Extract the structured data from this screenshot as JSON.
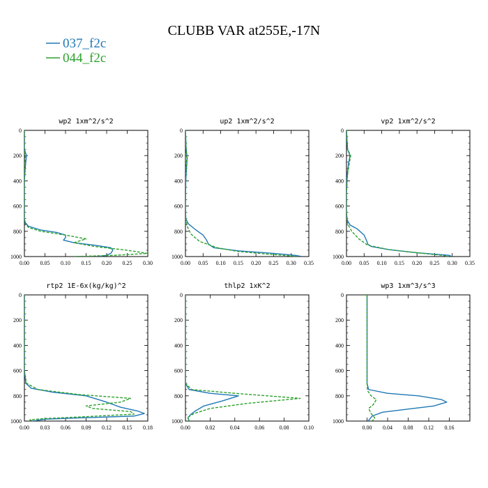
{
  "figure": {
    "title": "CLUBB VAR at255E,-17N",
    "legend": [
      {
        "label": "037_f2c",
        "color": "#1f77b4"
      },
      {
        "label": "044_f2c",
        "color": "#2ca02c"
      }
    ]
  },
  "chart_data": [
    {
      "type": "line",
      "title": "wp2  1xm^2/s^2",
      "xlim": [
        0,
        0.3
      ],
      "ylim": [
        1000,
        0
      ],
      "xticks": [
        0,
        0.05,
        0.1,
        0.15,
        0.2,
        0.25,
        0.3
      ],
      "xtick_labels": [
        "0.00",
        "0.05",
        "0.10",
        "0.15",
        "0.20",
        "0.25",
        "0.30"
      ],
      "yticks": [
        0,
        200,
        400,
        600,
        800,
        1000
      ],
      "ytick_labels": [
        "0",
        "200",
        "400",
        "600",
        "800",
        "1000"
      ],
      "series": [
        {
          "name": "037_f2c",
          "color": "#1f77b4",
          "dashed": false,
          "points": [
            [
              0.0,
              0
            ],
            [
              0.0,
              150
            ],
            [
              0.003,
              180
            ],
            [
              0.005,
              200
            ],
            [
              0.004,
              230
            ],
            [
              0.002,
              300
            ],
            [
              0.0,
              400
            ],
            [
              0.0,
              600
            ],
            [
              0.0,
              700
            ],
            [
              0.002,
              730
            ],
            [
              0.01,
              760
            ],
            [
              0.04,
              790
            ],
            [
              0.08,
              810
            ],
            [
              0.1,
              830
            ],
            [
              0.1,
              850
            ],
            [
              0.095,
              870
            ],
            [
              0.12,
              890
            ],
            [
              0.17,
              910
            ],
            [
              0.21,
              930
            ],
            [
              0.215,
              950
            ],
            [
              0.21,
              975
            ],
            [
              0.2,
              990
            ],
            [
              0.18,
              1000
            ]
          ]
        },
        {
          "name": "044_f2c",
          "color": "#2ca02c",
          "dashed": true,
          "points": [
            [
              0.0,
              0
            ],
            [
              0.0,
              150
            ],
            [
              0.002,
              200
            ],
            [
              0.001,
              300
            ],
            [
              0.0,
              400
            ],
            [
              0.0,
              700
            ],
            [
              0.002,
              740
            ],
            [
              0.01,
              770
            ],
            [
              0.04,
              800
            ],
            [
              0.1,
              830
            ],
            [
              0.15,
              860
            ],
            [
              0.12,
              890
            ],
            [
              0.17,
              920
            ],
            [
              0.25,
              950
            ],
            [
              0.3,
              975
            ],
            [
              0.22,
              990
            ],
            [
              0.12,
              1000
            ]
          ]
        }
      ]
    },
    {
      "type": "line",
      "title": "up2  1xm^2/s^2",
      "xlim": [
        0,
        0.35
      ],
      "ylim": [
        1000,
        0
      ],
      "xticks": [
        0,
        0.05,
        0.1,
        0.15,
        0.2,
        0.25,
        0.3,
        0.35
      ],
      "xtick_labels": [
        "0.00",
        "0.05",
        "0.10",
        "0.15",
        "0.20",
        "0.25",
        "0.30",
        "0.35"
      ],
      "yticks": [
        0,
        200,
        400,
        600,
        800,
        1000
      ],
      "ytick_labels": [
        "0",
        "200",
        "400",
        "600",
        "800",
        "1000"
      ],
      "series": [
        {
          "name": "037_f2c",
          "color": "#1f77b4",
          "dashed": false,
          "points": [
            [
              0.0,
              0
            ],
            [
              0.002,
              150
            ],
            [
              0.005,
              220
            ],
            [
              0.003,
              300
            ],
            [
              0.001,
              400
            ],
            [
              0.0,
              600
            ],
            [
              0.001,
              700
            ],
            [
              0.008,
              740
            ],
            [
              0.03,
              790
            ],
            [
              0.05,
              830
            ],
            [
              0.06,
              870
            ],
            [
              0.065,
              900
            ],
            [
              0.08,
              930
            ],
            [
              0.15,
              955
            ],
            [
              0.25,
              975
            ],
            [
              0.31,
              990
            ],
            [
              0.33,
              1000
            ]
          ]
        },
        {
          "name": "044_f2c",
          "color": "#2ca02c",
          "dashed": true,
          "points": [
            [
              0.0,
              0
            ],
            [
              0.002,
              150
            ],
            [
              0.004,
              220
            ],
            [
              0.002,
              300
            ],
            [
              0.0,
              400
            ],
            [
              0.0,
              600
            ],
            [
              0.001,
              700
            ],
            [
              0.005,
              760
            ],
            [
              0.015,
              820
            ],
            [
              0.04,
              880
            ],
            [
              0.09,
              930
            ],
            [
              0.15,
              960
            ],
            [
              0.23,
              980
            ],
            [
              0.3,
              995
            ],
            [
              0.32,
              1000
            ]
          ]
        }
      ]
    },
    {
      "type": "line",
      "title": "vp2  1xm^2/s^2",
      "xlim": [
        0,
        0.35
      ],
      "ylim": [
        1000,
        0
      ],
      "xticks": [
        0,
        0.05,
        0.1,
        0.15,
        0.2,
        0.25,
        0.3,
        0.35
      ],
      "xtick_labels": [
        "0.00",
        "0.05",
        "0.10",
        "0.15",
        "0.20",
        "0.25",
        "0.30",
        "0.35"
      ],
      "yticks": [
        0,
        200,
        400,
        600,
        800,
        1000
      ],
      "ytick_labels": [
        "0",
        "200",
        "400",
        "600",
        "800",
        "1000"
      ],
      "series": [
        {
          "name": "037_f2c",
          "color": "#1f77b4",
          "dashed": false,
          "points": [
            [
              0.0,
              0
            ],
            [
              0.003,
              150
            ],
            [
              0.01,
              200
            ],
            [
              0.006,
              260
            ],
            [
              0.002,
              350
            ],
            [
              0.0,
              500
            ],
            [
              0.0,
              650
            ],
            [
              0.002,
              710
            ],
            [
              0.01,
              750
            ],
            [
              0.03,
              780
            ],
            [
              0.05,
              830
            ],
            [
              0.058,
              880
            ],
            [
              0.06,
              900
            ],
            [
              0.07,
              920
            ],
            [
              0.12,
              945
            ],
            [
              0.2,
              970
            ],
            [
              0.29,
              990
            ],
            [
              0.3,
              1000
            ]
          ]
        },
        {
          "name": "044_f2c",
          "color": "#2ca02c",
          "dashed": true,
          "points": [
            [
              0.0,
              0
            ],
            [
              0.003,
              150
            ],
            [
              0.012,
              200
            ],
            [
              0.008,
              260
            ],
            [
              0.003,
              350
            ],
            [
              0.0,
              500
            ],
            [
              0.0,
              650
            ],
            [
              0.003,
              740
            ],
            [
              0.015,
              800
            ],
            [
              0.035,
              860
            ],
            [
              0.06,
              910
            ],
            [
              0.12,
              945
            ],
            [
              0.2,
              970
            ],
            [
              0.27,
              990
            ],
            [
              0.29,
              1000
            ]
          ]
        }
      ]
    },
    {
      "type": "line",
      "title": "rtp2  1E-6x(kg/kg)^2",
      "xlim": [
        0,
        0.18
      ],
      "ylim": [
        1000,
        0
      ],
      "xticks": [
        0,
        0.03,
        0.06,
        0.09,
        0.12,
        0.15,
        0.18
      ],
      "xtick_labels": [
        "0.00",
        "0.03",
        "0.06",
        "0.09",
        "0.12",
        "0.15",
        "0.18"
      ],
      "yticks": [
        0,
        200,
        400,
        600,
        800,
        1000
      ],
      "ytick_labels": [
        "0",
        "200",
        "400",
        "600",
        "800",
        "1000"
      ],
      "series": [
        {
          "name": "037_f2c",
          "color": "#1f77b4",
          "dashed": false,
          "points": [
            [
              0.0,
              0
            ],
            [
              0.0,
              600
            ],
            [
              0.002,
              700
            ],
            [
              0.01,
              740
            ],
            [
              0.04,
              770
            ],
            [
              0.09,
              800
            ],
            [
              0.12,
              850
            ],
            [
              0.14,
              890
            ],
            [
              0.165,
              920
            ],
            [
              0.175,
              940
            ],
            [
              0.16,
              960
            ],
            [
              0.08,
              975
            ],
            [
              0.03,
              985
            ],
            [
              0.012,
              1000
            ]
          ]
        },
        {
          "name": "044_f2c",
          "color": "#2ca02c",
          "dashed": true,
          "points": [
            [
              0.0,
              0
            ],
            [
              0.0,
              600
            ],
            [
              0.003,
              700
            ],
            [
              0.02,
              750
            ],
            [
              0.08,
              790
            ],
            [
              0.155,
              820
            ],
            [
              0.14,
              850
            ],
            [
              0.09,
              880
            ],
            [
              0.1,
              900
            ],
            [
              0.155,
              925
            ],
            [
              0.16,
              945
            ],
            [
              0.09,
              965
            ],
            [
              0.03,
              980
            ],
            [
              0.008,
              990
            ],
            [
              0.012,
              1000
            ]
          ]
        }
      ]
    },
    {
      "type": "line",
      "title": "thlp2  1xK^2",
      "xlim": [
        0,
        0.1
      ],
      "ylim": [
        1000,
        0
      ],
      "xticks": [
        0,
        0.02,
        0.04,
        0.06,
        0.08,
        0.1
      ],
      "xtick_labels": [
        "0.00",
        "0.02",
        "0.04",
        "0.06",
        "0.08",
        "0.10"
      ],
      "yticks": [
        0,
        200,
        400,
        600,
        800,
        1000
      ],
      "ytick_labels": [
        "0",
        "200",
        "400",
        "600",
        "800",
        "1000"
      ],
      "series": [
        {
          "name": "037_f2c",
          "color": "#1f77b4",
          "dashed": false,
          "points": [
            [
              0.0,
              0
            ],
            [
              0.0,
              600
            ],
            [
              0.0,
              700
            ],
            [
              0.003,
              750
            ],
            [
              0.02,
              780
            ],
            [
              0.043,
              800
            ],
            [
              0.03,
              840
            ],
            [
              0.015,
              880
            ],
            [
              0.008,
              920
            ],
            [
              0.004,
              950
            ],
            [
              0.002,
              975
            ],
            [
              0.003,
              1000
            ]
          ]
        },
        {
          "name": "044_f2c",
          "color": "#2ca02c",
          "dashed": true,
          "points": [
            [
              0.0,
              0
            ],
            [
              0.0,
              600
            ],
            [
              0.0,
              700
            ],
            [
              0.005,
              750
            ],
            [
              0.04,
              780
            ],
            [
              0.093,
              820
            ],
            [
              0.05,
              860
            ],
            [
              0.02,
              900
            ],
            [
              0.007,
              940
            ],
            [
              0.002,
              970
            ],
            [
              0.003,
              1000
            ]
          ]
        }
      ]
    },
    {
      "type": "line",
      "title": "wp3  1xm^3/s^3",
      "xlim": [
        -0.04,
        0.2
      ],
      "ylim": [
        1000,
        0
      ],
      "xticks": [
        0,
        0.04,
        0.08,
        0.12,
        0.16
      ],
      "xtick_labels": [
        "0.00",
        "0.04",
        "0.08",
        "0.12",
        "0.16"
      ],
      "yticks": [
        0,
        200,
        400,
        600,
        800,
        1000
      ],
      "ytick_labels": [
        "0",
        "200",
        "400",
        "600",
        "800",
        "1000"
      ],
      "series": [
        {
          "name": "037_f2c",
          "color": "#1f77b4",
          "dashed": false,
          "points": [
            [
              0.0,
              0
            ],
            [
              0.0,
              500
            ],
            [
              0.0,
              700
            ],
            [
              0.003,
              750
            ],
            [
              0.04,
              780
            ],
            [
              0.1,
              800
            ],
            [
              0.145,
              830
            ],
            [
              0.155,
              850
            ],
            [
              0.13,
              880
            ],
            [
              0.07,
              910
            ],
            [
              0.03,
              930
            ],
            [
              0.01,
              960
            ],
            [
              0.005,
              985
            ],
            [
              0.002,
              1000
            ]
          ]
        },
        {
          "name": "044_f2c",
          "color": "#2ca02c",
          "dashed": true,
          "points": [
            [
              0.0,
              0
            ],
            [
              0.0,
              500
            ],
            [
              0.0,
              700
            ],
            [
              0.001,
              760
            ],
            [
              0.008,
              800
            ],
            [
              0.018,
              830
            ],
            [
              0.012,
              870
            ],
            [
              0.003,
              900
            ],
            [
              0.008,
              940
            ],
            [
              0.015,
              975
            ],
            [
              0.01,
              1000
            ]
          ]
        }
      ]
    }
  ]
}
